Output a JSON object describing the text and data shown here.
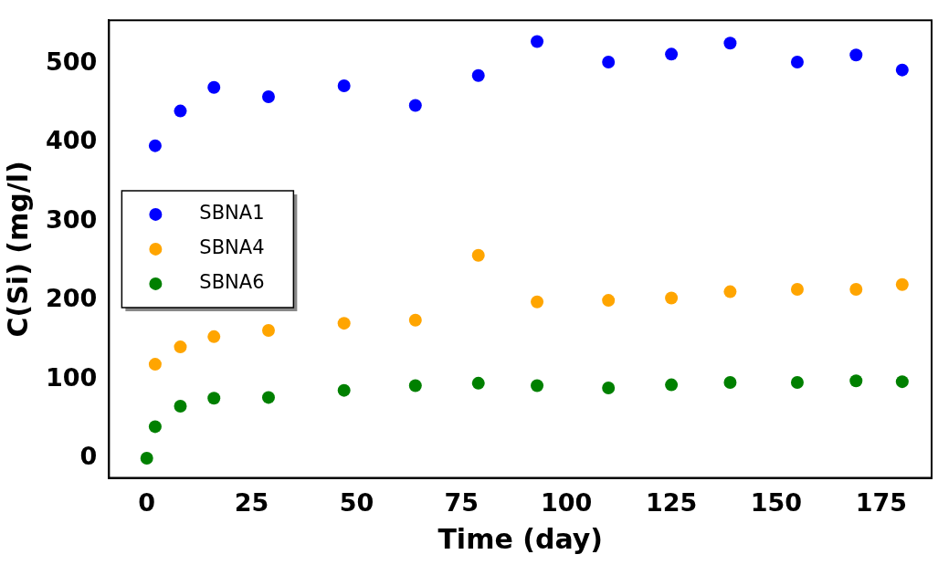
{
  "chart_data": {
    "type": "scatter",
    "xlabel": "Time (day)",
    "ylabel": "C(Si) (mg/l)",
    "x": [
      2,
      8,
      16,
      29,
      47,
      64,
      79,
      93,
      110,
      125,
      139,
      155,
      169,
      180
    ],
    "xlim": [
      -9,
      187
    ],
    "xticks": [
      0,
      25,
      50,
      75,
      100,
      125,
      150,
      175
    ],
    "ylim": [
      -25,
      555
    ],
    "yticks": [
      0,
      100,
      200,
      300,
      400,
      500
    ],
    "grid": false,
    "legend": "center left",
    "marker": "circle",
    "series": [
      {
        "name": "SBNA1",
        "color": "#0000ff",
        "values": [
          396,
          440,
          470,
          458,
          472,
          447,
          485,
          528,
          502,
          512,
          526,
          502,
          511,
          492
        ]
      },
      {
        "name": "SBNA4",
        "color": "#ffa500",
        "values": [
          119,
          141,
          154,
          162,
          171,
          175,
          257,
          198,
          200,
          203,
          211,
          214,
          214,
          220
        ]
      },
      {
        "name": "SBNA6",
        "color": "#008000",
        "x": [
          0,
          2,
          8,
          16,
          29,
          47,
          64,
          79,
          93,
          110,
          125,
          139,
          155,
          169,
          180
        ],
        "values": [
          0,
          40,
          66,
          76,
          77,
          86,
          92,
          95,
          92,
          89,
          93,
          96,
          96,
          98,
          97
        ]
      }
    ]
  }
}
